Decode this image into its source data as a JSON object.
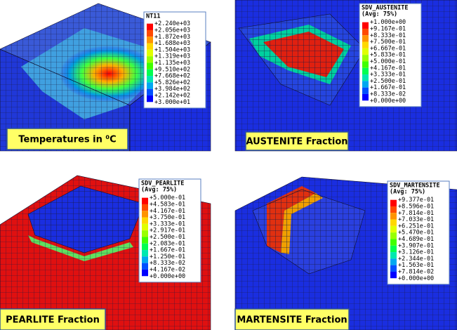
{
  "panels": [
    {
      "legend": {
        "title": "NT11",
        "labels": [
          "+2.240e+03",
          "+2.056e+03",
          "+1.872e+03",
          "+1.688e+03",
          "+1.504e+03",
          "+1.319e+03",
          "+1.135e+03",
          "+9.510e+02",
          "+7.668e+02",
          "+5.826e+02",
          "+3.984e+02",
          "+2.142e+02",
          "+3.000e+01"
        ]
      },
      "caption": "Temperatures in ⁰C"
    },
    {
      "legend": {
        "title": "SDV_AUSTENITE",
        "subtitle": "(Avg: 75%)",
        "labels": [
          "+1.000e+00",
          "+9.167e-01",
          "+8.333e-01",
          "+7.500e-01",
          "+6.667e-01",
          "+5.833e-01",
          "+5.000e-01",
          "+4.167e-01",
          "+3.333e-01",
          "+2.500e-01",
          "+1.667e-01",
          "+8.333e-02",
          "+0.000e+00"
        ]
      },
      "caption": "AUSTENITE Fraction"
    },
    {
      "legend": {
        "title": "SDV_PEARLITE",
        "subtitle": "(Avg: 75%)",
        "labels": [
          "+5.000e-01",
          "+4.583e-01",
          "+4.167e-01",
          "+3.750e-01",
          "+3.333e-01",
          "+2.917e-01",
          "+2.500e-01",
          "+2.083e-01",
          "+1.667e-01",
          "+1.250e-01",
          "+8.333e-02",
          "+4.167e-02",
          "+0.000e+00"
        ]
      },
      "caption": "PEARLITE Fraction"
    },
    {
      "legend": {
        "title": "SDV_MARTENSITE",
        "subtitle": "(Avg: 75%)",
        "labels": [
          "+9.377e-01",
          "+8.596e-01",
          "+7.814e-01",
          "+7.033e-01",
          "+6.251e-01",
          "+5.470e-01",
          "+4.689e-01",
          "+3.907e-01",
          "+3.126e-01",
          "+2.344e-01",
          "+1.563e-01",
          "+7.814e-02",
          "+0.000e+00"
        ]
      },
      "caption": "MARTENSITE Fraction"
    }
  ]
}
